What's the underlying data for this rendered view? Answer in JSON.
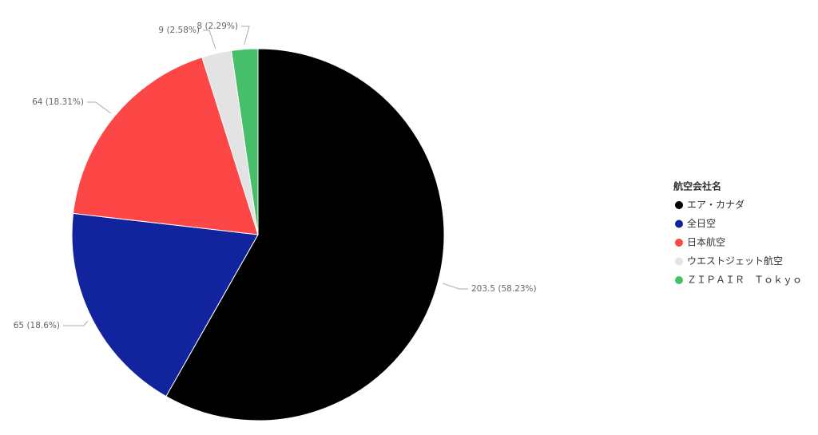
{
  "chart_data": {
    "type": "pie",
    "legend_title": "航空会社名",
    "categories": [
      "エア・カナダ",
      "全日空",
      "日本航空",
      "ウエストジェット航空",
      "ＺＩＰＡＩＲ　Ｔｏｋｙｏ"
    ],
    "values": [
      203.5,
      65,
      64,
      9,
      8
    ],
    "value_labels": [
      "203.5 (58.23%)",
      "65 (18.6%)",
      "64 (18.31%)",
      "9 (2.58%)",
      "8 (2.29%)"
    ],
    "colors": [
      "#000000",
      "#12239e",
      "#fd4646",
      "#e3e3e3",
      "#46be6a"
    ],
    "legend": "right"
  }
}
